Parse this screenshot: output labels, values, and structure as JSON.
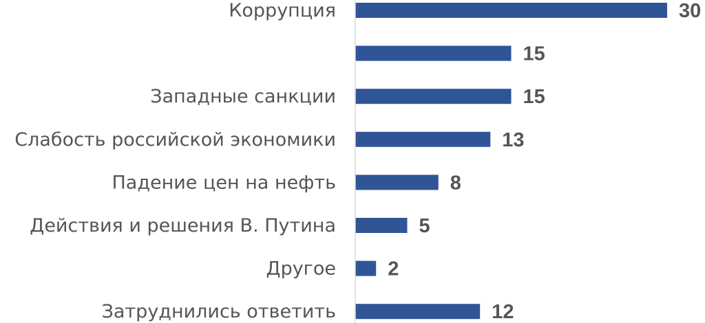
{
  "chart_data": {
    "type": "bar",
    "orientation": "horizontal",
    "categories": [
      "Коррупция",
      "",
      "Западные санкции",
      "Слабость российской экономики",
      "Падение цен на нефть",
      "Действия и решения В. Путина",
      "Другое",
      "Затруднились ответить"
    ],
    "values": [
      30,
      15,
      15,
      13,
      8,
      5,
      2,
      12
    ],
    "data_labels": [
      "30",
      "15",
      "15",
      "13",
      "8",
      "5",
      "2",
      "12"
    ],
    "xlim": [
      0,
      30
    ],
    "grid": false,
    "legend": "none",
    "colors": {
      "bar": "#2F5597",
      "axis": "#D9D9D9",
      "text": "#555555"
    }
  }
}
